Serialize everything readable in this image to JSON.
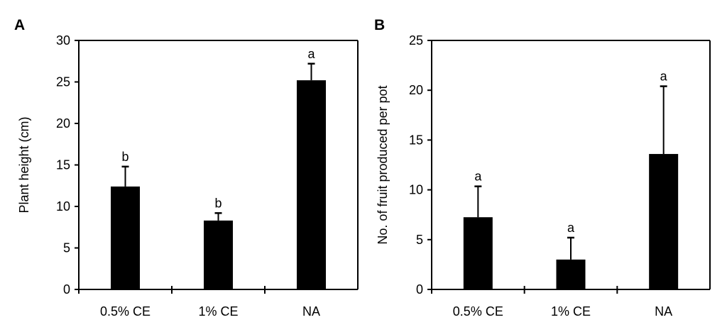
{
  "chart_data": [
    {
      "type": "bar",
      "panel_label": "A",
      "categories": [
        "0.5% CE",
        "1% CE",
        "NA"
      ],
      "values": [
        12.4,
        8.3,
        25.2
      ],
      "error_upper": [
        14.8,
        9.2,
        27.2
      ],
      "significance_letters": [
        "b",
        "b",
        "a"
      ],
      "xlabel": "",
      "ylabel": "Plant height (cm)",
      "ylim": [
        0,
        30
      ],
      "yticks": [
        0,
        5,
        10,
        15,
        20,
        25,
        30
      ],
      "grid": false,
      "bar_color": "#000000"
    },
    {
      "type": "bar",
      "panel_label": "B",
      "categories": [
        "0.5% CE",
        "1% CE",
        "NA"
      ],
      "values": [
        7.25,
        3.0,
        13.6
      ],
      "error_upper": [
        10.35,
        5.2,
        20.4
      ],
      "significance_letters": [
        "a",
        "a",
        "a"
      ],
      "xlabel": "",
      "ylabel": "No. of fruit produced per pot",
      "ylim": [
        0,
        25
      ],
      "yticks": [
        0,
        5,
        10,
        15,
        20,
        25
      ],
      "grid": false,
      "bar_color": "#000000"
    }
  ]
}
